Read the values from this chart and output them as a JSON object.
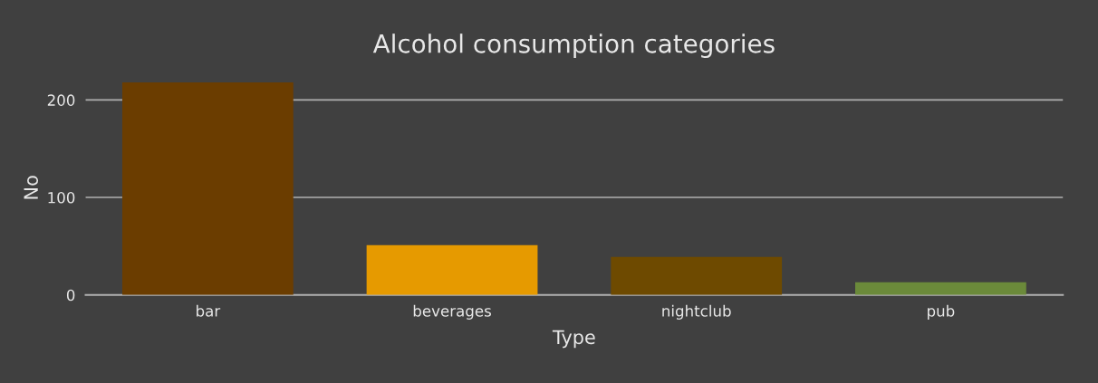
{
  "chart_data": {
    "type": "bar",
    "title": "Alcohol consumption categories",
    "xlabel": "Type",
    "ylabel": "No",
    "categories": [
      "bar",
      "beverages",
      "nightclub",
      "pub"
    ],
    "values": [
      218,
      51,
      39,
      13
    ],
    "colors": [
      "#6b3d00",
      "#e69a00",
      "#6e4a00",
      "#6b8a3a"
    ],
    "ylim": [
      0,
      220
    ],
    "yticks": [
      0,
      100,
      200
    ],
    "grid": "y"
  }
}
